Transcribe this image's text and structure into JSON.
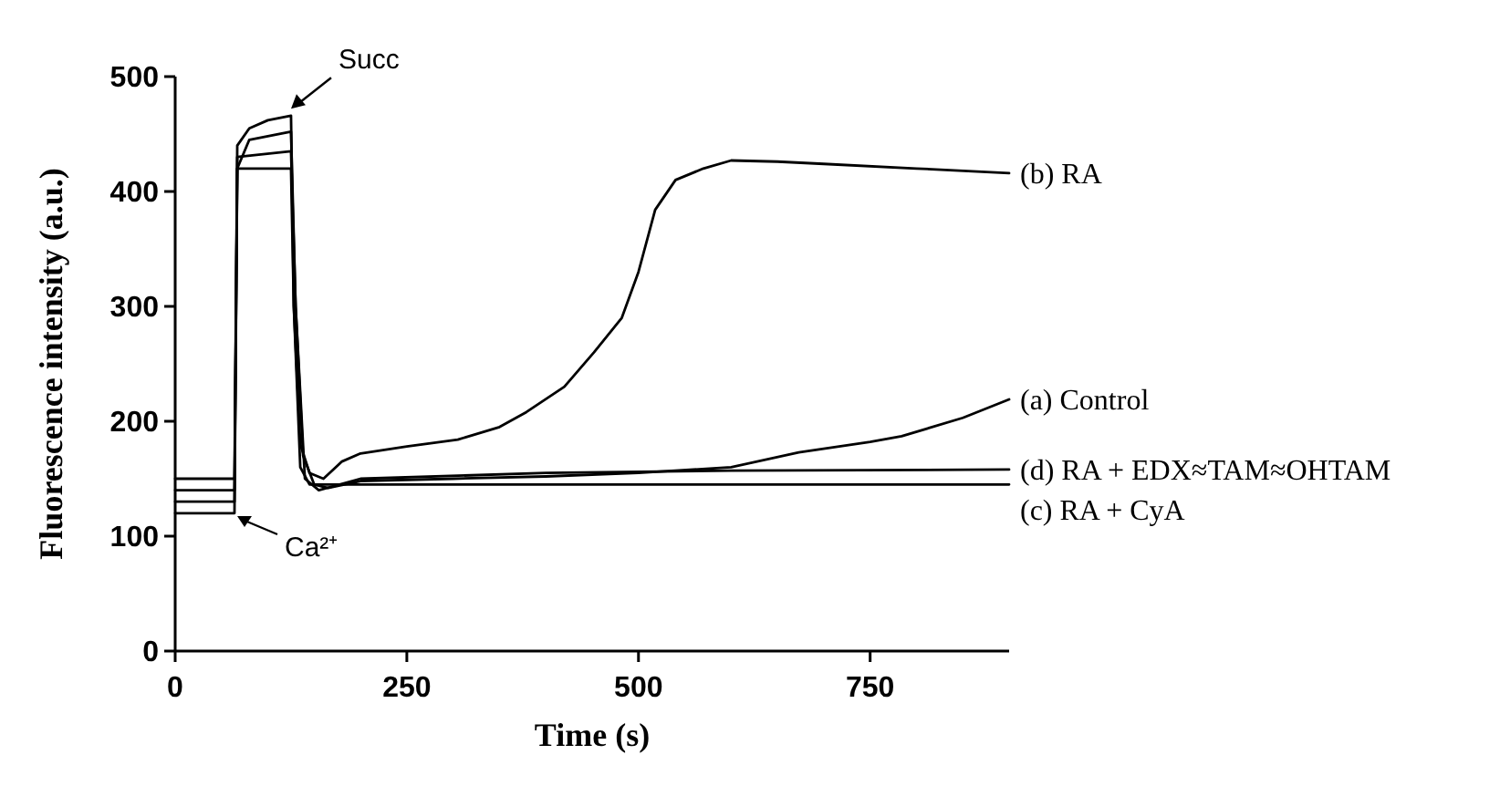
{
  "chart_data": {
    "type": "line",
    "xlabel": "Time (s)",
    "ylabel": "Fluorescence intensity (a.u.)",
    "xlim": [
      0,
      900
    ],
    "xticks": [
      0,
      250,
      500,
      750
    ],
    "ylim": [
      0,
      500
    ],
    "yticks": [
      0,
      100,
      200,
      300,
      400,
      500
    ],
    "grid": false,
    "marker": "none",
    "line_style": "solid",
    "annotations": [
      {
        "text": "Succ",
        "x": 125,
        "y": 472
      },
      "Ca²⁺"
    ],
    "series": [
      {
        "name": "(b) RA",
        "color": "#000000",
        "x": [
          0,
          64,
          67,
          80,
          100,
          125,
          128,
          135,
          145,
          160,
          180,
          200,
          250,
          305,
          350,
          379,
          420,
          452,
          482,
          500,
          518,
          540,
          570,
          600,
          650,
          700,
          800,
          900
        ],
        "values": [
          150,
          150,
          440,
          455,
          462,
          466,
          300,
          180,
          155,
          150,
          165,
          172,
          178,
          184,
          195,
          208,
          230,
          260,
          290,
          330,
          384,
          410,
          420,
          427,
          426,
          424,
          420,
          416
        ]
      },
      {
        "name": "(a) Control",
        "color": "#000000",
        "x": [
          0,
          64,
          67,
          80,
          125,
          130,
          138,
          150,
          165,
          200,
          300,
          400,
          500,
          600,
          673,
          750,
          784,
          850,
          900
        ],
        "values": [
          140,
          140,
          420,
          445,
          452,
          300,
          170,
          145,
          142,
          148,
          150,
          152,
          155,
          160,
          173,
          182,
          187,
          203,
          219
        ]
      },
      {
        "name": "(d) RA + EDX≈TAM≈OHTAM",
        "color": "#000000",
        "x": [
          0,
          64,
          67,
          125,
          130,
          140,
          155,
          200,
          400,
          600,
          900
        ],
        "values": [
          130,
          130,
          430,
          435,
          300,
          150,
          140,
          150,
          155,
          157,
          158
        ]
      },
      {
        "name": "(c) RA + CyA",
        "color": "#000000",
        "x": [
          0,
          64,
          67,
          125,
          128,
          135,
          145,
          200,
          900
        ],
        "values": [
          120,
          120,
          420,
          420,
          300,
          160,
          145,
          145,
          145
        ]
      }
    ]
  }
}
